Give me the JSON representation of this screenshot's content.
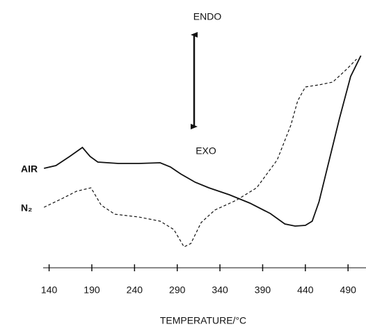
{
  "chart_data": {
    "type": "line",
    "x_label": "TEMPERATURE/°C",
    "annotations": [
      "ENDO",
      "EXO"
    ],
    "xlim": [
      133,
      511
    ],
    "xticks": [
      140,
      190,
      240,
      290,
      340,
      390,
      440,
      490
    ],
    "ylim": [
      0,
      350
    ],
    "series": [
      {
        "name": "AIR",
        "color": "#111111",
        "dash": "solid",
        "x": [
          134,
          148,
          164,
          179,
          188,
          197,
          221,
          245,
          270,
          282,
          294,
          311,
          327,
          351,
          375,
          399,
          416,
          428,
          440,
          448,
          456,
          468,
          480,
          493,
          505
        ],
        "values": [
          158,
          162,
          175,
          188,
          175,
          167,
          165,
          165,
          166,
          160,
          150,
          138,
          130,
          120,
          108,
          93,
          78,
          75,
          76,
          82,
          110,
          170,
          230,
          290,
          320
        ]
      },
      {
        "name": "N₂",
        "color": "#111111",
        "dash": "dashed",
        "x": [
          134,
          156,
          172,
          189,
          201,
          217,
          245,
          270,
          286,
          298,
          306,
          318,
          334,
          359,
          383,
          407,
          423,
          431,
          440,
          456,
          472,
          488,
          500
        ],
        "values": [
          102,
          115,
          125,
          130,
          105,
          92,
          88,
          82,
          70,
          45,
          50,
          80,
          98,
          112,
          130,
          170,
          220,
          255,
          275,
          278,
          282,
          300,
          315
        ]
      }
    ]
  }
}
